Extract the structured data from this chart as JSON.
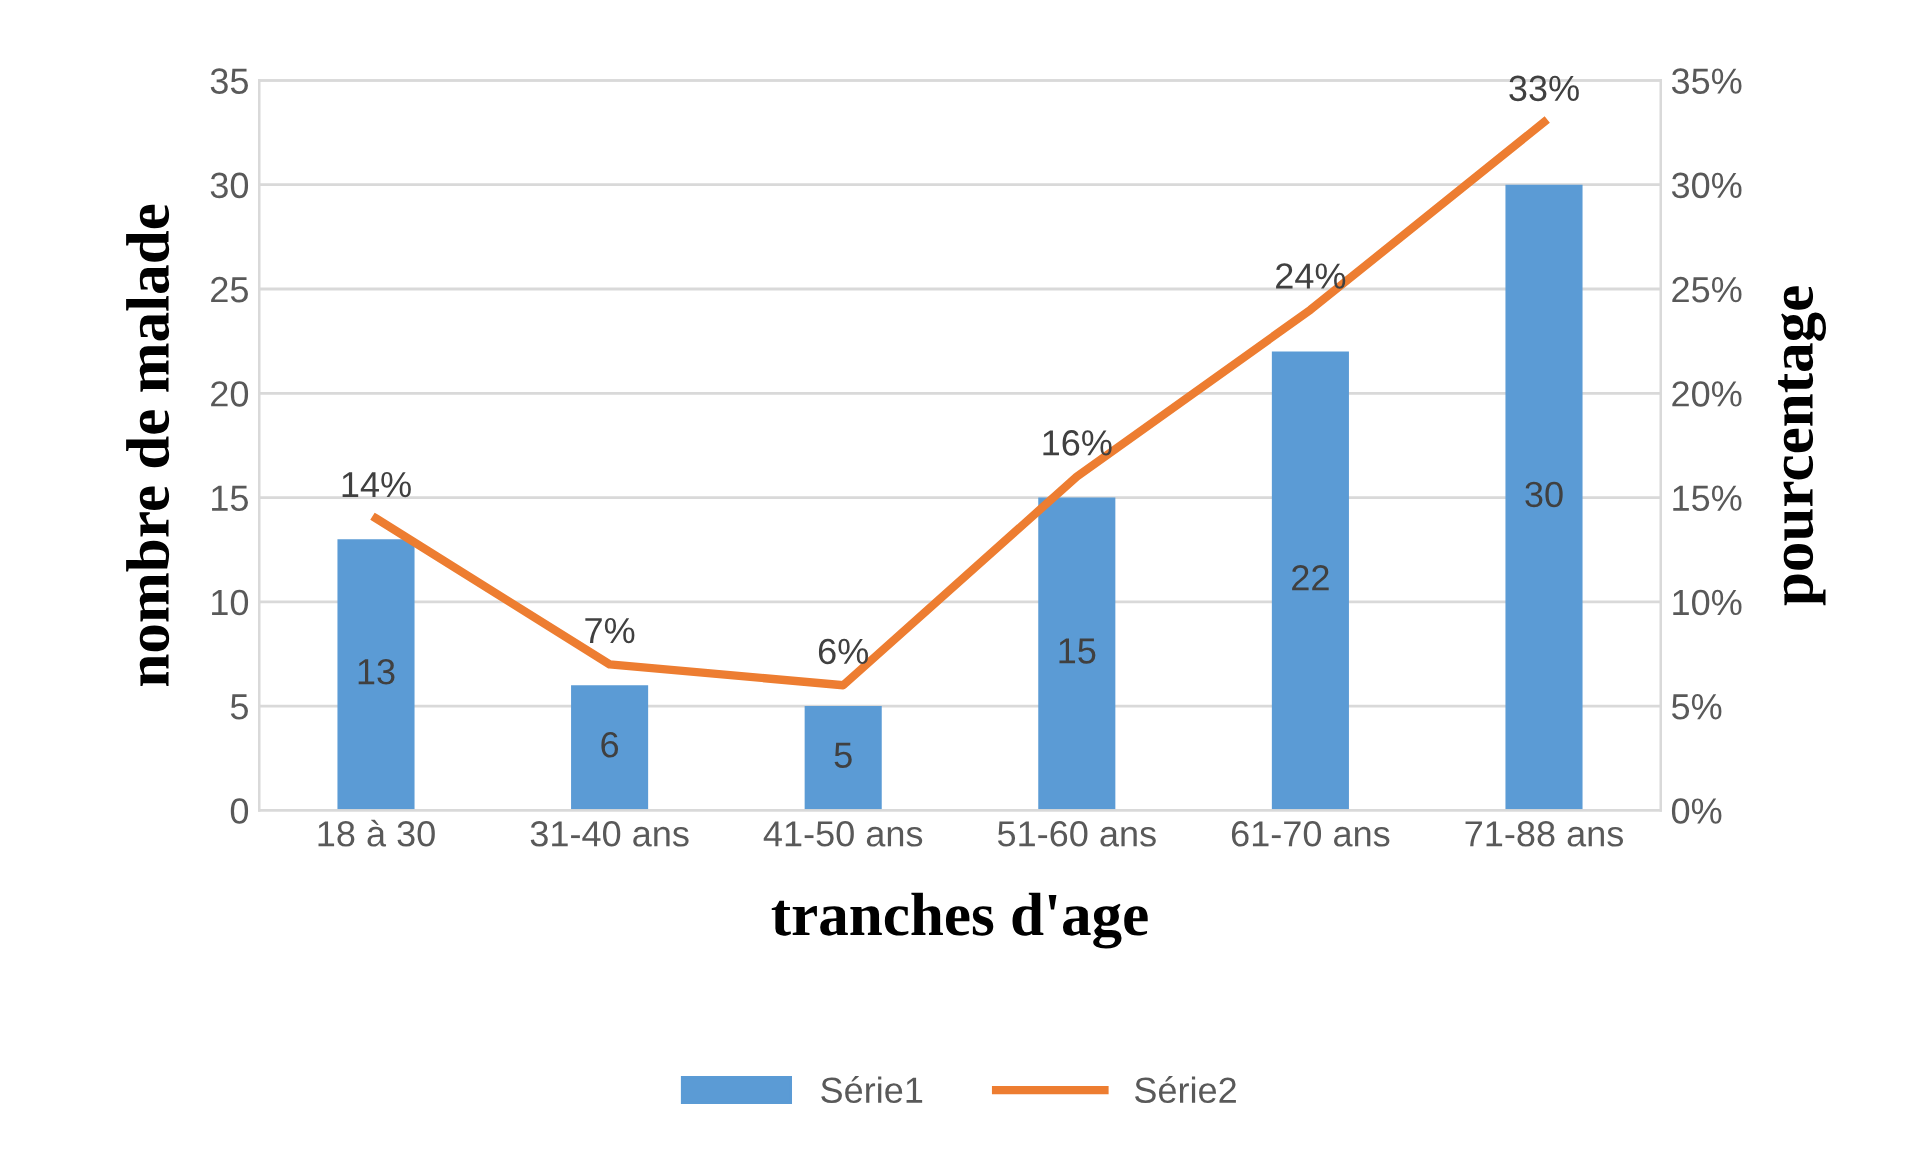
{
  "chart_data": {
    "type": "bar",
    "xlabel": "tranches d'age",
    "ylabel": "nombre de malade",
    "y2label": "pourcentage",
    "categories": [
      "18 à 30",
      "31-40 ans",
      "41-50 ans",
      "51-60 ans",
      "61-70 ans",
      "71-88 ans"
    ],
    "series": [
      {
        "name": "Série1",
        "color": "#5b9bd5",
        "values": [
          13,
          6,
          5,
          15,
          22,
          30
        ],
        "value_labels": [
          "13",
          "6",
          "5",
          "15",
          "22",
          "30"
        ]
      },
      {
        "name": "Série2",
        "type": "line",
        "axis": "y2",
        "color": "#ed7d31",
        "values": [
          14,
          7,
          6,
          16,
          24,
          33
        ],
        "value_labels": [
          "14%",
          "7%",
          "6%",
          "16%",
          "24%",
          "33%"
        ]
      }
    ],
    "ylim": [
      0,
      35
    ],
    "yticks": [
      0,
      5,
      10,
      15,
      20,
      25,
      30,
      35
    ],
    "y2lim": [
      0,
      35
    ],
    "y2ticks": [
      {
        "value": 0,
        "label": "0%"
      },
      {
        "value": 5,
        "label": "5%"
      },
      {
        "value": 10,
        "label": "10%"
      },
      {
        "value": 15,
        "label": "15%"
      },
      {
        "value": 20,
        "label": "20%"
      },
      {
        "value": 25,
        "label": "25%"
      },
      {
        "value": 30,
        "label": "30%"
      },
      {
        "value": 35,
        "label": "35%"
      }
    ],
    "grid": "y",
    "legend": "bottom",
    "marker": "none",
    "line_style": "solid"
  }
}
